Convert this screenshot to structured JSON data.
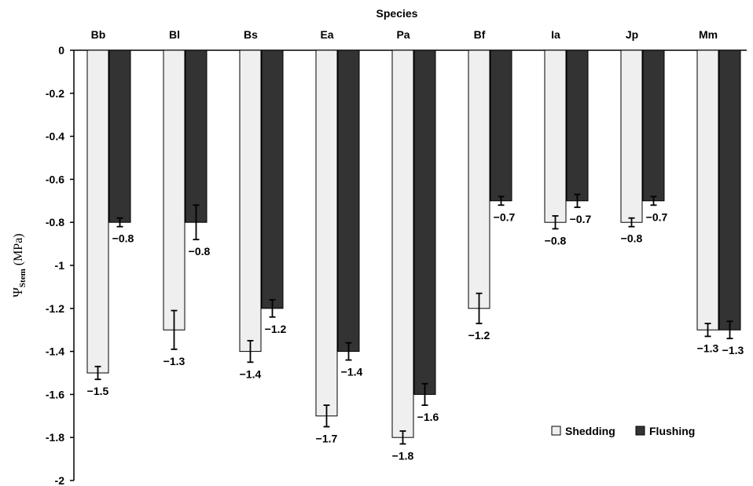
{
  "chart_data": {
    "type": "bar",
    "title": "Species",
    "ylabel": "Ψ",
    "ylabel_subscript": "Stem",
    "ylabel_unit": "(MPa)",
    "ylim": [
      -2,
      0
    ],
    "yticks": [
      "0",
      "-0.2",
      "-0.4",
      "-0.6",
      "-0.8",
      "-1",
      "-1.2",
      "-1.4",
      "-1.6",
      "-1.8",
      "-2"
    ],
    "categories": [
      "Bb",
      "Bl",
      "Bs",
      "Ea",
      "Pa",
      "Bf",
      "Ia",
      "Jp",
      "Mm"
    ],
    "series": [
      {
        "name": "Shedding",
        "color": "#efefef",
        "values": [
          -1.5,
          -1.3,
          -1.4,
          -1.7,
          -1.8,
          -1.2,
          -0.8,
          -0.8,
          -1.3
        ],
        "errors": [
          0.03,
          0.09,
          0.05,
          0.05,
          0.03,
          0.07,
          0.03,
          0.02,
          0.03
        ],
        "labels": [
          "−1.5",
          "−1.3",
          "−1.4",
          "−1.7",
          "−1.8",
          "−1.2",
          "−0.8",
          "−0.8",
          "−1.3"
        ]
      },
      {
        "name": "Flushing",
        "color": "#333333",
        "values": [
          -0.8,
          -0.8,
          -1.2,
          -1.4,
          -1.6,
          -0.7,
          -0.7,
          -0.7,
          -1.3
        ],
        "errors": [
          0.02,
          0.08,
          0.04,
          0.04,
          0.05,
          0.02,
          0.03,
          0.02,
          0.04
        ],
        "labels": [
          "−0.8",
          "−0.8",
          "−1.2",
          "−1.4",
          "−1.6",
          "−0.7",
          "−0.7",
          "−0.7",
          "−1.3"
        ]
      }
    ],
    "legend_position": "bottom-right",
    "grid": false
  }
}
